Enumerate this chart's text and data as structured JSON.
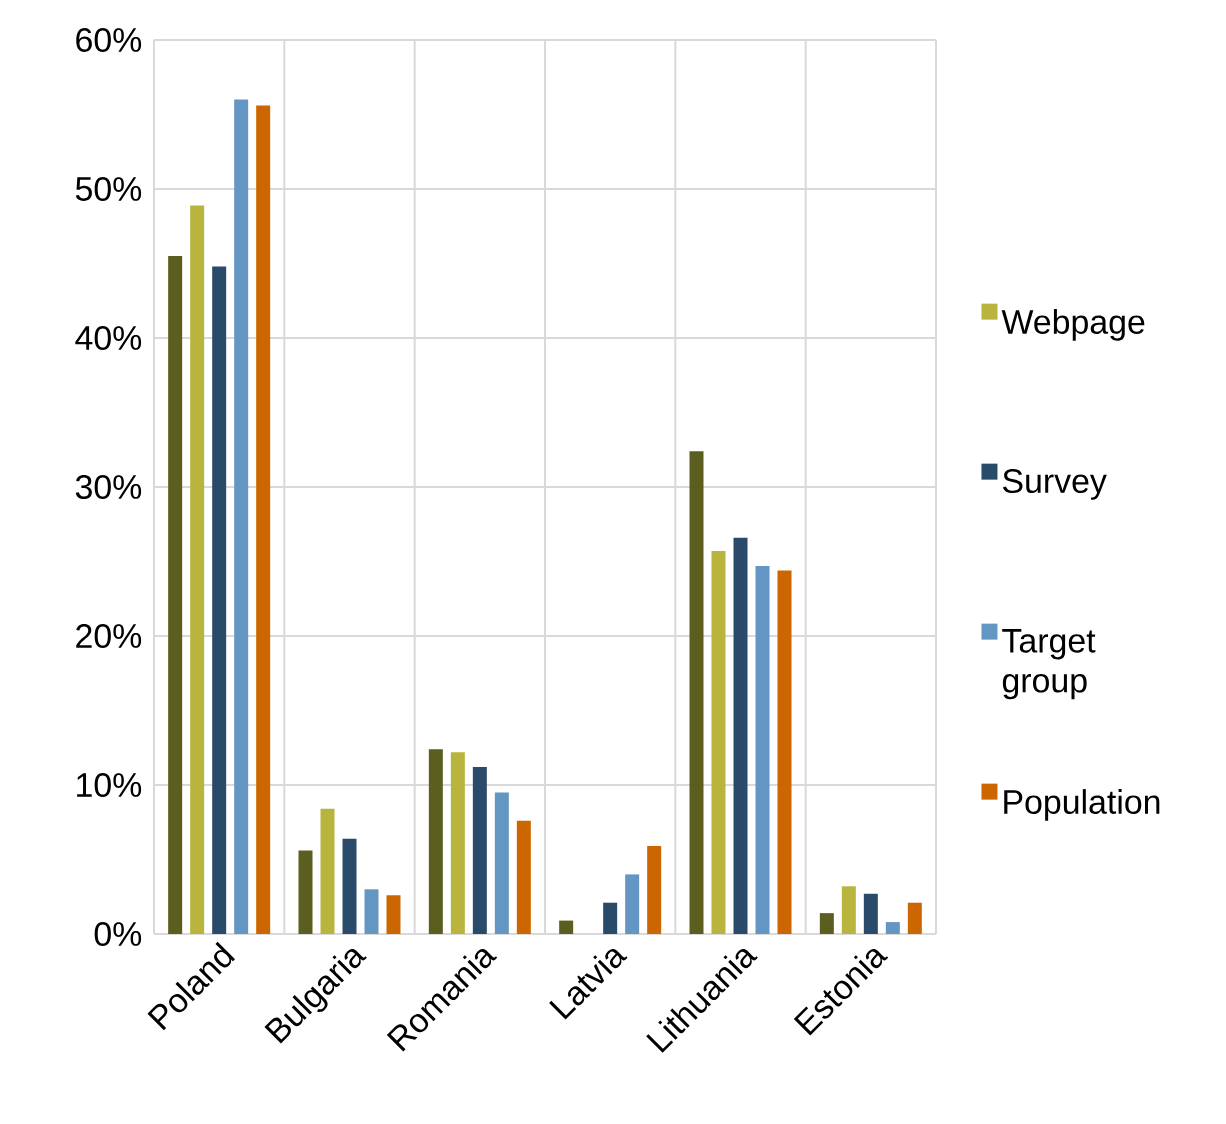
{
  "chart_data": {
    "type": "bar",
    "categories": [
      "Poland",
      "Bulgaria",
      "Romania",
      "Latvia",
      "Lithuania",
      "Estonia"
    ],
    "series": [
      {
        "color": "#5b5e1f",
        "values": [
          45.5,
          5.6,
          12.4,
          0.9,
          32.4,
          1.4
        ]
      },
      {
        "name": "Webpage",
        "color": "#b8b43d",
        "values": [
          48.9,
          8.4,
          12.2,
          0,
          25.7,
          3.2
        ]
      },
      {
        "name": "Survey",
        "color": "#2a4a69",
        "values": [
          44.8,
          6.4,
          11.2,
          2.1,
          26.6,
          2.7
        ]
      },
      {
        "name": "Target group",
        "color": "#6496c3",
        "values": [
          56.0,
          3.0,
          9.5,
          4.0,
          24.7,
          0.8
        ]
      },
      {
        "name": "Population",
        "color": "#cc6600",
        "values": [
          55.6,
          2.6,
          7.6,
          5.9,
          24.4,
          2.1
        ]
      }
    ],
    "ylim": [
      0,
      60
    ],
    "yticks": [
      {
        "value": 0,
        "label": "0%"
      },
      {
        "value": 10,
        "label": "10%"
      },
      {
        "value": 20,
        "label": "20%"
      },
      {
        "value": 30,
        "label": "30%"
      },
      {
        "value": 40,
        "label": "40%"
      },
      {
        "value": 50,
        "label": "50%"
      },
      {
        "value": 60,
        "label": "60%"
      }
    ],
    "grid": true,
    "legend": "right"
  }
}
